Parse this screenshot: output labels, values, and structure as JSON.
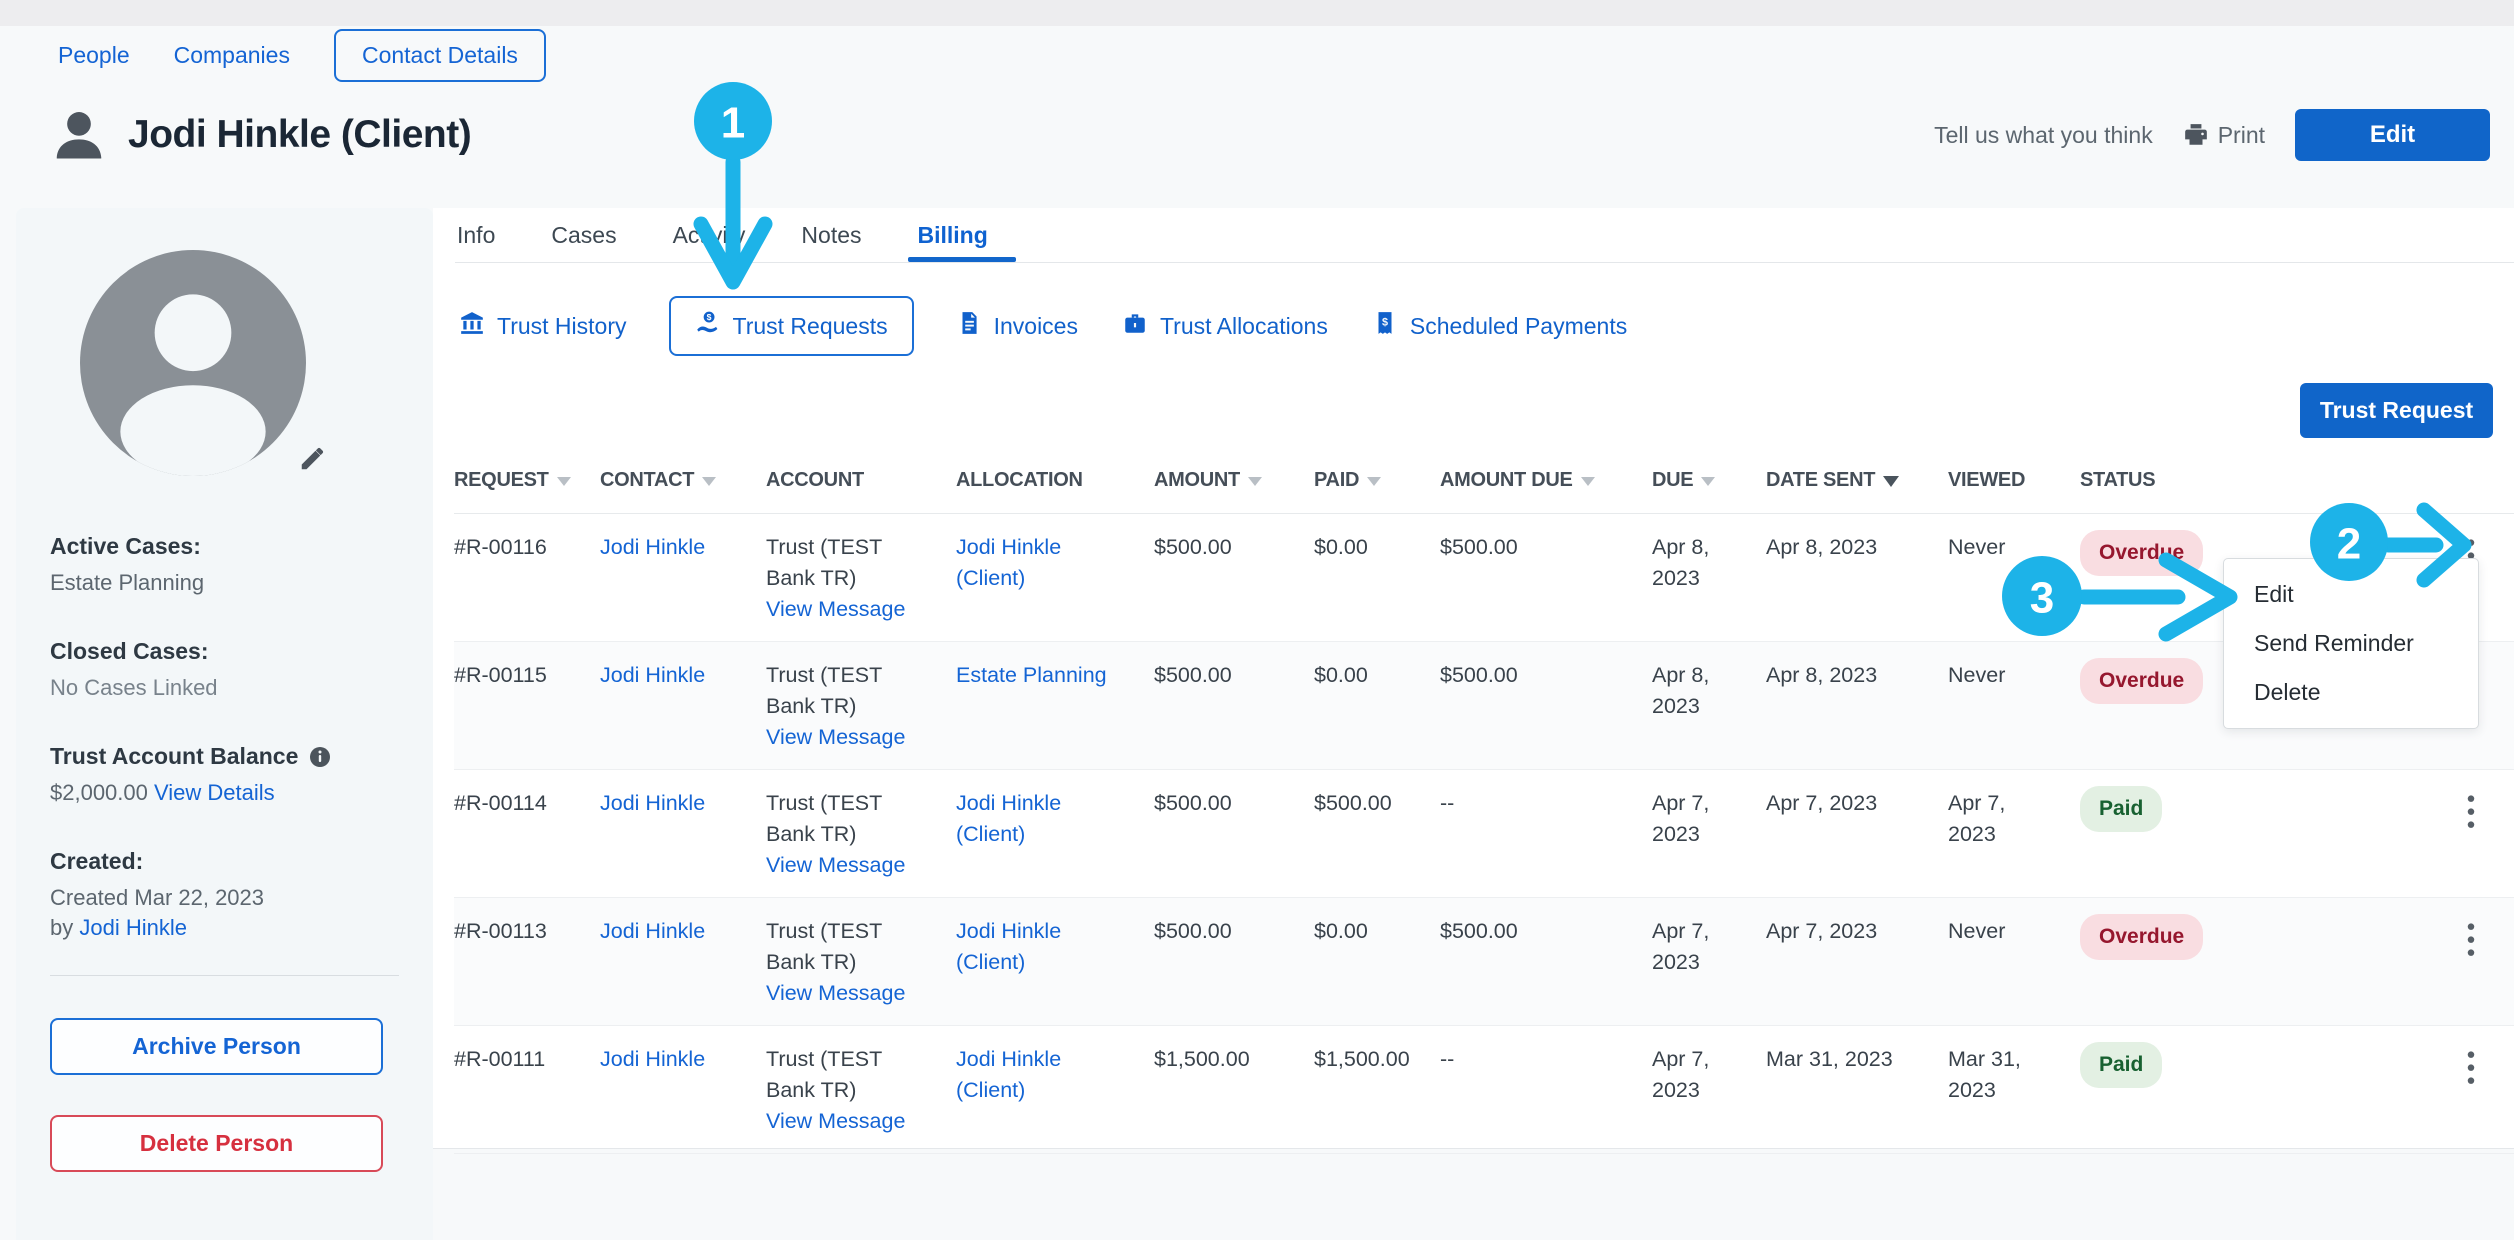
{
  "top_nav": {
    "people": "People",
    "companies": "Companies",
    "contact_details": "Contact Details"
  },
  "header": {
    "title": "Jodi Hinkle (Client)",
    "feedback_link": "Tell us what you think",
    "print_label": "Print",
    "edit_button": "Edit"
  },
  "tabs": [
    {
      "label": "Info",
      "active": false
    },
    {
      "label": "Cases",
      "active": false
    },
    {
      "label": "Activity",
      "active": false
    },
    {
      "label": "Notes",
      "active": false
    },
    {
      "label": "Billing",
      "active": true
    }
  ],
  "subtabs": [
    {
      "label": "Trust History",
      "icon": "bank-icon",
      "active": false
    },
    {
      "label": "Trust Requests",
      "icon": "hand-dollar-icon",
      "active": true
    },
    {
      "label": "Invoices",
      "icon": "invoice-icon",
      "active": false
    },
    {
      "label": "Trust Allocations",
      "icon": "briefcase-icon",
      "active": false
    },
    {
      "label": "Scheduled Payments",
      "icon": "receipt-dollar-icon",
      "active": false
    }
  ],
  "toolbar": {
    "trust_request_button": "Trust Request"
  },
  "sidebar": {
    "active_cases_label": "Active Cases:",
    "active_cases_value": "Estate Planning",
    "closed_cases_label": "Closed Cases:",
    "closed_cases_value": "No Cases Linked",
    "trust_balance_label": "Trust Account Balance",
    "trust_balance_value": "$2,000.00",
    "trust_balance_link": "View Details",
    "created_label": "Created:",
    "created_value": "Created Mar 22, 2023",
    "created_by_prefix": "by",
    "created_by_link": "Jodi Hinkle",
    "archive_button": "Archive Person",
    "delete_button": "Delete Person"
  },
  "table": {
    "headers": [
      {
        "label": "REQUEST",
        "sort": "inactive"
      },
      {
        "label": "CONTACT",
        "sort": "inactive"
      },
      {
        "label": "ACCOUNT",
        "sort": "none"
      },
      {
        "label": "ALLOCATION",
        "sort": "none"
      },
      {
        "label": "AMOUNT",
        "sort": "inactive"
      },
      {
        "label": "PAID",
        "sort": "inactive"
      },
      {
        "label": "AMOUNT DUE",
        "sort": "inactive"
      },
      {
        "label": "DUE",
        "sort": "inactive"
      },
      {
        "label": "DATE SENT",
        "sort": "active"
      },
      {
        "label": "VIEWED",
        "sort": "none"
      },
      {
        "label": "STATUS",
        "sort": "none"
      }
    ],
    "rows": [
      {
        "request": "#R-00116",
        "contact": "Jodi Hinkle",
        "account": "Trust (TEST Bank TR)",
        "account_link": "View Message",
        "allocation": "Jodi Hinkle (Client)",
        "amount": "$500.00",
        "paid": "$0.00",
        "amount_due": "$500.00",
        "due": "Apr 8, 2023",
        "date_sent": "Apr 8, 2023",
        "viewed": "Never",
        "status": "Overdue",
        "status_type": "overdue"
      },
      {
        "request": "#R-00115",
        "contact": "Jodi Hinkle",
        "account": "Trust (TEST Bank TR)",
        "account_link": "View Message",
        "allocation": "Estate Planning",
        "amount": "$500.00",
        "paid": "$0.00",
        "amount_due": "$500.00",
        "due": "Apr 8, 2023",
        "date_sent": "Apr 8, 2023",
        "viewed": "Never",
        "status": "Overdue",
        "status_type": "overdue"
      },
      {
        "request": "#R-00114",
        "contact": "Jodi Hinkle",
        "account": "Trust (TEST Bank TR)",
        "account_link": "View Message",
        "allocation": "Jodi Hinkle (Client)",
        "amount": "$500.00",
        "paid": "$500.00",
        "amount_due": "--",
        "due": "Apr 7, 2023",
        "date_sent": "Apr 7, 2023",
        "viewed": "Apr 7, 2023",
        "status": "Paid",
        "status_type": "paid"
      },
      {
        "request": "#R-00113",
        "contact": "Jodi Hinkle",
        "account": "Trust (TEST Bank TR)",
        "account_link": "View Message",
        "allocation": "Jodi Hinkle (Client)",
        "amount": "$500.00",
        "paid": "$0.00",
        "amount_due": "$500.00",
        "due": "Apr 7, 2023",
        "date_sent": "Apr 7, 2023",
        "viewed": "Never",
        "status": "Overdue",
        "status_type": "overdue"
      },
      {
        "request": "#R-00111",
        "contact": "Jodi Hinkle",
        "account": "Trust (TEST Bank TR)",
        "account_link": "View Message",
        "allocation": "Jodi Hinkle (Client)",
        "amount": "$1,500.00",
        "paid": "$1,500.00",
        "amount_due": "--",
        "due": "Apr 7, 2023",
        "date_sent": "Mar 31, 2023",
        "viewed": "Mar 31, 2023",
        "status": "Paid",
        "status_type": "paid"
      }
    ]
  },
  "context_menu": {
    "items": [
      "Edit",
      "Send Reminder",
      "Delete"
    ]
  },
  "annotations": {
    "step1": "1",
    "step2": "2",
    "step3": "3"
  },
  "colors": {
    "accent_blue": "#1464d4",
    "primary_button_blue": "#1065c9",
    "annotation_cyan": "#1db3e8",
    "overdue_bg": "#f9dde1",
    "overdue_text": "#96172e",
    "paid_bg": "#e3f0e3",
    "paid_text": "#186131"
  }
}
